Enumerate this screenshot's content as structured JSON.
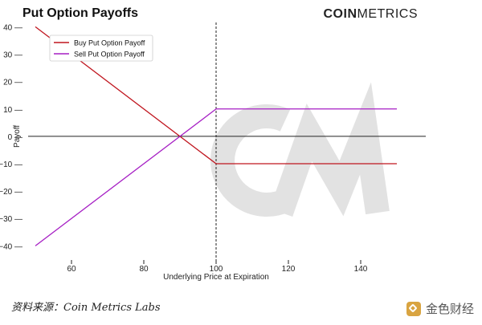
{
  "header": {
    "title": "Put Option Payoffs",
    "brand_bold": "COIN",
    "brand_regular": "METRICS"
  },
  "footer": {
    "source": "资料来源：Coin Metrics Labs",
    "logo_text": "金色财经"
  },
  "chart_data": {
    "type": "line",
    "title": "Put Option Payoffs",
    "xlabel": "Underlying Price at Expiration",
    "ylabel": "Payoff",
    "xlim": [
      48,
      158
    ],
    "ylim": [
      -44,
      41
    ],
    "xticks": [
      60,
      80,
      100,
      120,
      140
    ],
    "yticks": [
      40,
      30,
      20,
      10,
      0,
      -10,
      -20,
      -30,
      -40
    ],
    "ytick_labels": [
      "40",
      "30",
      "20",
      "10",
      "0",
      "−10",
      "−20",
      "−30",
      "−40"
    ],
    "strike_line": 100,
    "zero_line": 0,
    "legend_position": "top-left",
    "grid": false,
    "series": [
      {
        "name": "Buy Put Option Payoff",
        "color": "#c0161f",
        "points": [
          [
            50,
            40
          ],
          [
            100,
            -10
          ],
          [
            150,
            -10
          ]
        ]
      },
      {
        "name": "Sell Put Option Payoff",
        "color": "#a61fc4",
        "points": [
          [
            50,
            -40
          ],
          [
            100,
            10
          ],
          [
            150,
            10
          ]
        ]
      }
    ]
  }
}
